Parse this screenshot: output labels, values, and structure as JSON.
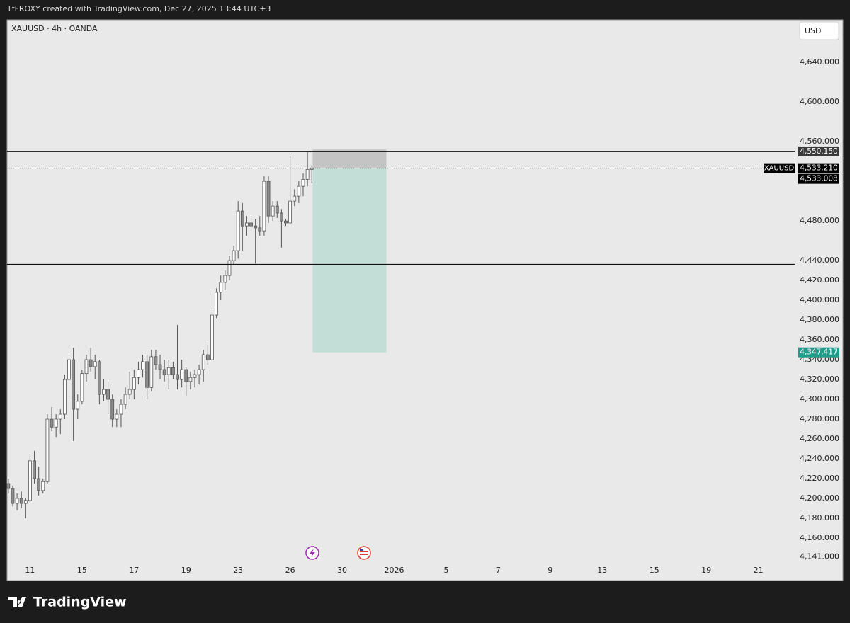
{
  "header": "TfFROXY created with TradingView.com, Dec 27, 2025 13:44 UTC+3",
  "footer": "TradingView",
  "chart_data": {
    "type": "candlestick",
    "title": "XAUUSD · 4h · OANDA",
    "currency": "USD",
    "up_color": "#ffffff",
    "down_color": "#8c8c8c",
    "wick_color": "#555555",
    "open": [
      4215,
      4210,
      4195,
      4200,
      4195,
      4198,
      4238,
      4220,
      4208,
      4217,
      4280,
      4272,
      4280,
      4285,
      4320,
      4340,
      4290,
      4298,
      4326,
      4340,
      4333,
      4338,
      4305,
      4310,
      4300,
      4280,
      4285,
      4295,
      4305,
      4310,
      4322,
      4330,
      4338,
      4312,
      4343,
      4335,
      4330,
      4325,
      4332,
      4325,
      4320,
      4330,
      4318,
      4322,
      4325,
      4330,
      4345,
      4340,
      4385,
      4408,
      4418,
      4425,
      4440,
      4450,
      4490,
      4475,
      4478,
      4475,
      4473,
      4470,
      4520,
      4485,
      4495,
      4488,
      4480,
      4478,
      4500,
      4505,
      4515,
      4522,
      4532
    ],
    "high": [
      4220,
      4213,
      4205,
      4207,
      4200,
      4245,
      4248,
      4232,
      4220,
      4285,
      4292,
      4285,
      4290,
      4325,
      4345,
      4352,
      4305,
      4330,
      4345,
      4352,
      4345,
      4340,
      4320,
      4318,
      4305,
      4290,
      4300,
      4312,
      4328,
      4330,
      4338,
      4345,
      4345,
      4350,
      4350,
      4345,
      4340,
      4340,
      4338,
      4375,
      4340,
      4332,
      4328,
      4330,
      4335,
      4350,
      4355,
      4390,
      4412,
      4425,
      4430,
      4445,
      4455,
      4500,
      4498,
      4485,
      4485,
      4482,
      4485,
      4525,
      4525,
      4500,
      4500,
      4492,
      4482,
      4545,
      4512,
      4520,
      4528,
      4550,
      4536
    ],
    "low": [
      4205,
      4192,
      4188,
      4190,
      4180,
      4195,
      4215,
      4203,
      4205,
      4215,
      4268,
      4262,
      4265,
      4280,
      4300,
      4258,
      4280,
      4295,
      4318,
      4328,
      4320,
      4295,
      4298,
      4285,
      4272,
      4272,
      4272,
      4290,
      4300,
      4300,
      4315,
      4322,
      4300,
      4308,
      4330,
      4320,
      4318,
      4310,
      4320,
      4310,
      4312,
      4303,
      4310,
      4312,
      4315,
      4318,
      4335,
      4338,
      4382,
      4400,
      4410,
      4420,
      4435,
      4442,
      4450,
      4465,
      4470,
      4437,
      4465,
      4465,
      4478,
      4480,
      4483,
      4453,
      4475,
      4476,
      4495,
      4498,
      4505,
      4515,
      4518
    ],
    "close": [
      4210,
      4195,
      4200,
      4195,
      4198,
      4238,
      4220,
      4208,
      4217,
      4280,
      4272,
      4280,
      4285,
      4320,
      4340,
      4290,
      4298,
      4326,
      4340,
      4333,
      4338,
      4305,
      4310,
      4300,
      4280,
      4285,
      4295,
      4305,
      4310,
      4322,
      4330,
      4338,
      4312,
      4343,
      4335,
      4330,
      4325,
      4332,
      4325,
      4320,
      4330,
      4318,
      4322,
      4325,
      4330,
      4345,
      4340,
      4385,
      4408,
      4418,
      4425,
      4440,
      4450,
      4490,
      4475,
      4478,
      4475,
      4473,
      4470,
      4520,
      4485,
      4495,
      4488,
      4480,
      4478,
      4500,
      4505,
      4515,
      4522,
      4532,
      4533.008
    ],
    "xlim": [
      -0.3,
      181.4
    ],
    "ylim": [
      4135,
      4683
    ],
    "xticks": [
      {
        "value": 5,
        "label": "11"
      },
      {
        "value": 17,
        "label": "15"
      },
      {
        "value": 29,
        "label": "17"
      },
      {
        "value": 41,
        "label": "19"
      },
      {
        "value": 53,
        "label": "23"
      },
      {
        "value": 65,
        "label": "26"
      },
      {
        "value": 77,
        "label": "30"
      },
      {
        "value": 89,
        "label": "2026"
      },
      {
        "value": 101,
        "label": "5"
      },
      {
        "value": 113,
        "label": "7"
      },
      {
        "value": 125,
        "label": "9"
      },
      {
        "value": 137,
        "label": "13"
      },
      {
        "value": 149,
        "label": "15"
      },
      {
        "value": 161,
        "label": "19"
      },
      {
        "value": 173,
        "label": "21"
      }
    ],
    "yticks": [
      {
        "value": 4640,
        "label": "4,640.000"
      },
      {
        "value": 4600,
        "label": "4,600.000"
      },
      {
        "value": 4560,
        "label": "4,560.000"
      },
      {
        "value": 4480,
        "label": "4,480.000"
      },
      {
        "value": 4440,
        "label": "4,440.000"
      },
      {
        "value": 4420,
        "label": "4,420.000"
      },
      {
        "value": 4400,
        "label": "4,400.000"
      },
      {
        "value": 4380,
        "label": "4,380.000"
      },
      {
        "value": 4360,
        "label": "4,360.000"
      },
      {
        "value": 4340,
        "label": "4,340.000"
      },
      {
        "value": 4320,
        "label": "4,320.000"
      },
      {
        "value": 4300,
        "label": "4,300.000"
      },
      {
        "value": 4280,
        "label": "4,280.000"
      },
      {
        "value": 4260,
        "label": "4,260.000"
      },
      {
        "value": 4240,
        "label": "4,240.000"
      },
      {
        "value": 4220,
        "label": "4,220.000"
      },
      {
        "value": 4200,
        "label": "4,200.000"
      },
      {
        "value": 4180,
        "label": "4,180.000"
      },
      {
        "value": 4160,
        "label": "4,160.000"
      },
      {
        "value": 4141,
        "label": "4,141.000"
      }
    ],
    "hlines": [
      4550.15,
      4436
    ],
    "position": {
      "entry": 4533.21,
      "stop": 4552,
      "target": 4347.417,
      "start": 70.2,
      "end": 87.2,
      "stop_color": "#c4c4c4",
      "target_color": "#c3ddd7"
    },
    "price_tags": [
      {
        "value": 4550.15,
        "label": "4,550.150",
        "color": "#3b3b3b"
      },
      {
        "value": 4533.21,
        "label": "4,533.210",
        "color": "#000000",
        "symbol": "XAUUSD"
      },
      {
        "value": 4533.008,
        "label": "4,533.008",
        "color": "#000000"
      },
      {
        "value": 4347.417,
        "label": "4,347.417",
        "color": "#1f9c8a"
      }
    ]
  }
}
